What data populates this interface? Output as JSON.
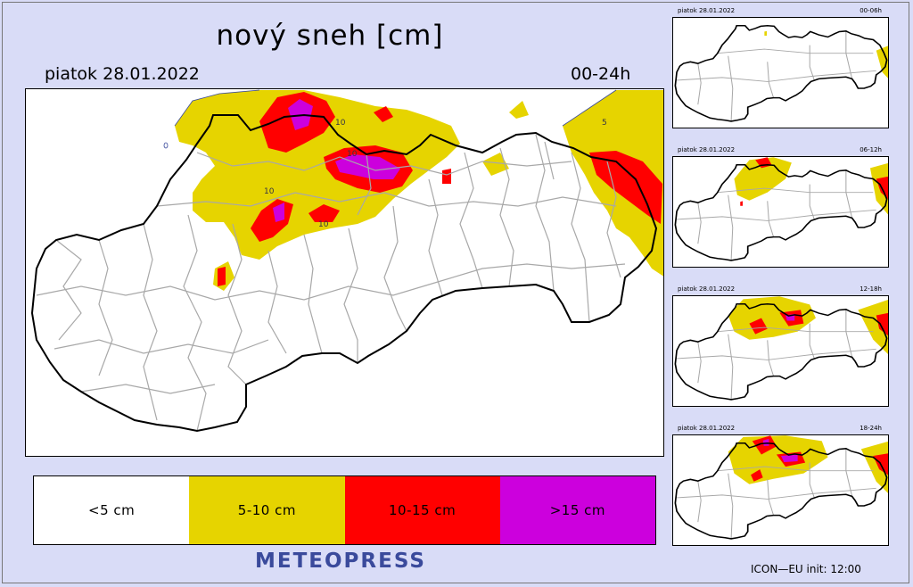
{
  "title": "nový sneh [cm]",
  "date_label": "piatok 28.01.2022",
  "period_label": "00-24h",
  "contour_labels": [
    "10",
    "10",
    "10",
    "10",
    "5"
  ],
  "legend": [
    {
      "label": "<5 cm",
      "color": "#ffffff"
    },
    {
      "label": "5-10 cm",
      "color": "#e6d400"
    },
    {
      "label": "10-15 cm",
      "color": "#ff0000"
    },
    {
      "label": ">15 cm",
      "color": "#cc00dd"
    }
  ],
  "brand": "METEOPRESS",
  "model_info": "ICON—EU  init:  12:00",
  "thumbnails": [
    {
      "date": "piatok 28.01.2022",
      "period": "00-06h"
    },
    {
      "date": "piatok 28.01.2022",
      "period": "06-12h"
    },
    {
      "date": "piatok 28.01.2022",
      "period": "12-18h"
    },
    {
      "date": "piatok 28.01.2022",
      "period": "18-24h"
    }
  ],
  "colors": {
    "background": "#d9dcf7",
    "brand": "#3a4a9c",
    "border": "#000000",
    "districts": "#a8a8a8"
  }
}
